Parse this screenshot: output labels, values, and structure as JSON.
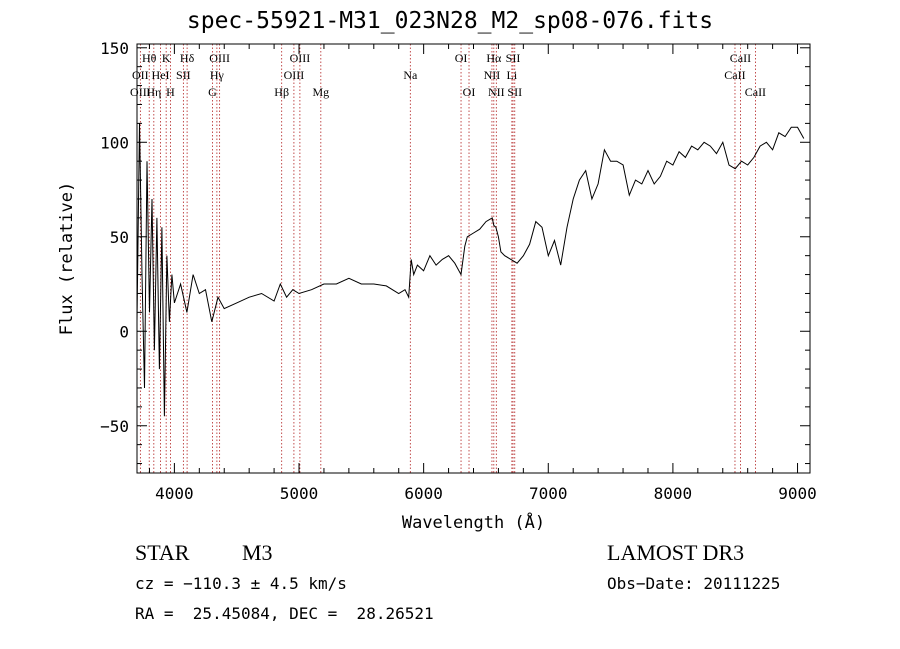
{
  "chart_data": {
    "type": "line",
    "title": "spec-55921-M31_023N28_M2_sp08-076.fits",
    "xlabel": "Wavelength (Å)",
    "ylabel": "Flux (relative)",
    "xlim": [
      3700,
      9100
    ],
    "ylim": [
      -75,
      152
    ],
    "xticks": [
      4000,
      5000,
      6000,
      7000,
      8000,
      9000
    ],
    "xtick_labels": [
      "4000",
      "5000",
      "6000",
      "7000",
      "8000",
      "9000"
    ],
    "yticks": [
      -50,
      0,
      50,
      100,
      150
    ],
    "ytick_labels": [
      "−50",
      "0",
      "50",
      "100",
      "150"
    ],
    "grid": false,
    "series": [
      {
        "name": "flux",
        "x": [
          3700,
          3720,
          3740,
          3760,
          3780,
          3800,
          3820,
          3840,
          3860,
          3880,
          3900,
          3920,
          3940,
          3960,
          3980,
          4000,
          4050,
          4100,
          4150,
          4200,
          4250,
          4300,
          4350,
          4400,
          4500,
          4600,
          4700,
          4800,
          4850,
          4900,
          4950,
          5000,
          5100,
          5200,
          5300,
          5400,
          5500,
          5600,
          5700,
          5800,
          5850,
          5880,
          5900,
          5920,
          5950,
          6000,
          6050,
          6100,
          6150,
          6200,
          6250,
          6300,
          6330,
          6350,
          6400,
          6450,
          6500,
          6550,
          6563,
          6580,
          6600,
          6620,
          6650,
          6700,
          6750,
          6800,
          6850,
          6900,
          6950,
          7000,
          7050,
          7100,
          7150,
          7200,
          7250,
          7300,
          7350,
          7400,
          7450,
          7500,
          7550,
          7600,
          7650,
          7700,
          7750,
          7800,
          7850,
          7900,
          7950,
          8000,
          8050,
          8100,
          8150,
          8200,
          8250,
          8300,
          8350,
          8400,
          8450,
          8500,
          8550,
          8600,
          8650,
          8700,
          8750,
          8800,
          8850,
          8900,
          8950,
          9000,
          9050
        ],
        "y": [
          5,
          110,
          30,
          -30,
          90,
          10,
          70,
          -10,
          60,
          -20,
          55,
          -45,
          40,
          5,
          30,
          15,
          25,
          10,
          30,
          20,
          22,
          5,
          18,
          12,
          15,
          18,
          20,
          16,
          25,
          18,
          22,
          20,
          22,
          25,
          25,
          28,
          25,
          25,
          24,
          20,
          22,
          18,
          38,
          30,
          35,
          32,
          40,
          35,
          38,
          40,
          36,
          30,
          45,
          50,
          52,
          54,
          58,
          60,
          56,
          55,
          50,
          42,
          40,
          38,
          36,
          40,
          46,
          58,
          55,
          40,
          48,
          35,
          55,
          70,
          80,
          85,
          70,
          78,
          96,
          90,
          90,
          88,
          72,
          80,
          78,
          85,
          78,
          82,
          90,
          88,
          95,
          92,
          98,
          96,
          100,
          98,
          94,
          100,
          88,
          86,
          90,
          88,
          92,
          98,
          100,
          96,
          105,
          103,
          108,
          108,
          102
        ]
      }
    ],
    "line_labels": [
      {
        "name": "Hθ",
        "wavelength": 3798,
        "row": 1
      },
      {
        "name": "OII",
        "wavelength": 3727,
        "row": 2
      },
      {
        "name": "OIII",
        "wavelength": 3727,
        "row": 3
      },
      {
        "name": "Hη",
        "wavelength": 3835,
        "row": 3
      },
      {
        "name": "HeI",
        "wavelength": 3889,
        "row": 2
      },
      {
        "name": "K",
        "wavelength": 3934,
        "row": 1
      },
      {
        "name": "H",
        "wavelength": 3968,
        "row": 3
      },
      {
        "name": "SII",
        "wavelength": 4072,
        "row": 2
      },
      {
        "name": "Hδ",
        "wavelength": 4102,
        "row": 1
      },
      {
        "name": "OIII",
        "wavelength": 4363,
        "row": 1
      },
      {
        "name": "Hγ",
        "wavelength": 4341,
        "row": 2
      },
      {
        "name": "G",
        "wavelength": 4305,
        "row": 3
      },
      {
        "name": "Hβ",
        "wavelength": 4861,
        "row": 3
      },
      {
        "name": "OIII",
        "wavelength": 5007,
        "row": 1
      },
      {
        "name": "OIII",
        "wavelength": 4959,
        "row": 2
      },
      {
        "name": "Mg",
        "wavelength": 5175,
        "row": 3
      },
      {
        "name": "Na",
        "wavelength": 5893,
        "row": 2
      },
      {
        "name": "OI",
        "wavelength": 6300,
        "row": 1
      },
      {
        "name": "OI",
        "wavelength": 6364,
        "row": 3
      },
      {
        "name": "Hα",
        "wavelength": 6563,
        "row": 1
      },
      {
        "name": "NII",
        "wavelength": 6548,
        "row": 2
      },
      {
        "name": "NII",
        "wavelength": 6583,
        "row": 3
      },
      {
        "name": "SII",
        "wavelength": 6717,
        "row": 1
      },
      {
        "name": "Li",
        "wavelength": 6708,
        "row": 2
      },
      {
        "name": "SII",
        "wavelength": 6731,
        "row": 3
      },
      {
        "name": "CaII",
        "wavelength": 8542,
        "row": 1
      },
      {
        "name": "CaII",
        "wavelength": 8498,
        "row": 2
      },
      {
        "name": "CaII",
        "wavelength": 8662,
        "row": 3
      }
    ],
    "line_marker_wavelengths": [
      3727,
      3798,
      3835,
      3889,
      3934,
      3968,
      4072,
      4102,
      4305,
      4341,
      4363,
      4861,
      4959,
      5007,
      5175,
      5893,
      6300,
      6364,
      6548,
      6563,
      6583,
      6708,
      6717,
      6731,
      8498,
      8542,
      8662
    ],
    "colors": {
      "line": "#000000",
      "markers": "#b22222",
      "axes": "#000000"
    }
  },
  "info": {
    "class": "STAR",
    "subclass": "M3",
    "survey": "LAMOST DR3",
    "cz": "cz = −110.3 ± 4.5 km/s",
    "obs_date": "Obs−Date: 20111225",
    "radec": "RA =  25.45084, DEC =  28.26521"
  }
}
